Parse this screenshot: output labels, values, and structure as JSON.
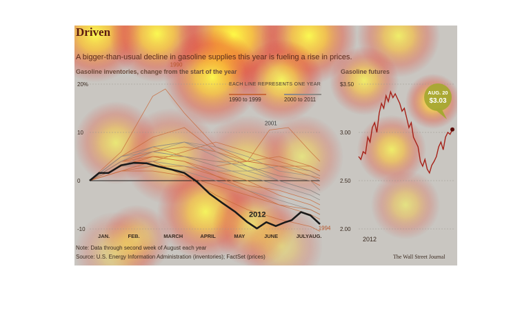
{
  "title": "Driven",
  "subtitle": "A bigger-than-usual decline in gasoline supplies this year is fueling a rise in prices.",
  "note": "Note: Data through second week of August each year",
  "source": "Source: U.S. Energy Information Administration (inventories); FactSet (prices)",
  "credit": "The Wall Street Journal",
  "colors": {
    "panel_bg": "#c9c6c1",
    "line_1990s": "#c8693a",
    "line_2000s": "#8f8a86",
    "line_2012": "#1a1a1a",
    "futures_line": "#a51f16",
    "callout": "#a6a832"
  },
  "chart_data": [
    {
      "type": "line",
      "title": "Gasoline inventories, change from the start of the year",
      "legend_header": "EACH LINE REPRESENTS ONE YEAR",
      "legend": [
        "1990 to 1999",
        "2000 to 2011"
      ],
      "categories": [
        "JAN.",
        "FEB.",
        "MARCH",
        "APRIL",
        "MAY",
        "JUNE",
        "JULY",
        "AUG."
      ],
      "y_ticks": [
        "20%",
        "10",
        "0",
        "-10"
      ],
      "ylim": [
        -10,
        20
      ],
      "annotations": [
        "1990",
        "2001",
        "1994",
        "2012"
      ],
      "series": [
        {
          "name": "2012",
          "x": [
            0,
            0.3,
            0.6,
            1,
            1.4,
            1.8,
            2.2,
            2.6,
            3,
            3.4,
            3.8,
            4.2,
            4.6,
            5,
            5.3,
            5.6,
            5.9,
            6.2,
            6.4,
            6.7,
            7,
            7.3
          ],
          "y": [
            0,
            1.6,
            1.6,
            3.2,
            3.7,
            3.6,
            2.9,
            2.3,
            1.6,
            -0.2,
            -2.7,
            -4.6,
            -6.4,
            -8.6,
            -9.9,
            -8.6,
            -9.4,
            -8.6,
            -8.2,
            -6.5,
            -7.2,
            -9
          ]
        },
        {
          "name": "1990",
          "x": [
            0,
            1,
            2,
            2.4,
            3,
            4,
            5,
            6,
            7,
            7.3
          ],
          "y": [
            0,
            6,
            17.5,
            19,
            14,
            7,
            4,
            3,
            1,
            0.5
          ]
        },
        {
          "name": "2001",
          "x": [
            0,
            1,
            2,
            3,
            4,
            5,
            5.7,
            6.3,
            7,
            7.3
          ],
          "y": [
            0,
            5,
            7,
            5,
            3,
            4,
            10.5,
            11,
            6,
            4
          ]
        },
        {
          "name": "1994",
          "x": [
            0,
            1,
            2,
            3,
            4,
            5,
            6,
            7,
            7.3
          ],
          "y": [
            0,
            4,
            4,
            1,
            -3,
            -6,
            -8,
            -9.5,
            -10.5
          ]
        },
        {
          "x": [
            0,
            1,
            2,
            3,
            4,
            5,
            6,
            7,
            7.3
          ],
          "y": [
            0,
            5,
            9,
            11,
            6,
            3,
            1,
            0,
            -1
          ]
        },
        {
          "x": [
            0,
            1,
            2,
            3,
            4,
            5,
            6,
            7,
            7.3
          ],
          "y": [
            0,
            3,
            6,
            8,
            5,
            2,
            0,
            -2,
            -3
          ]
        },
        {
          "x": [
            0,
            1,
            2,
            3,
            4,
            5,
            6,
            7,
            7.3
          ],
          "y": [
            0,
            4,
            5,
            4,
            2,
            0,
            -3,
            -5,
            -6
          ]
        },
        {
          "x": [
            0,
            1,
            2,
            3,
            4,
            5,
            6,
            7,
            7.3
          ],
          "y": [
            0,
            3,
            3,
            2,
            0,
            -2,
            -4,
            -6,
            -7
          ]
        },
        {
          "x": [
            0,
            1,
            2,
            3,
            4,
            5,
            6,
            7,
            7.3
          ],
          "y": [
            0,
            2,
            4,
            6,
            8,
            6,
            4,
            2,
            1
          ]
        },
        {
          "x": [
            0,
            1,
            2,
            3,
            4,
            5,
            6,
            7,
            7.3
          ],
          "y": [
            0,
            5,
            7,
            8,
            7,
            5,
            2,
            1,
            0
          ]
        },
        {
          "x": [
            0,
            1,
            2,
            3,
            4,
            5,
            6,
            7,
            7.3
          ],
          "y": [
            0,
            3,
            5,
            5,
            4,
            4,
            5,
            3,
            2
          ]
        },
        {
          "x": [
            0,
            1,
            2,
            3,
            4,
            5,
            6,
            7,
            7.3
          ],
          "y": [
            0,
            4,
            6,
            5,
            3,
            1,
            -1,
            -3,
            -4
          ]
        },
        {
          "x": [
            0,
            1,
            2,
            3,
            4,
            5,
            6,
            7,
            7.3
          ],
          "y": [
            0,
            2,
            3,
            3,
            1,
            -1,
            -2,
            -4,
            -5
          ]
        },
        {
          "x": [
            0,
            1,
            2,
            3,
            4,
            5,
            6,
            7,
            7.3
          ],
          "y": [
            0,
            3,
            4,
            3,
            2,
            2,
            3,
            2,
            1
          ]
        },
        {
          "x": [
            0,
            1,
            2,
            3,
            4,
            5,
            6,
            7,
            7.3
          ],
          "y": [
            0,
            4,
            6,
            7,
            6,
            4,
            3,
            3,
            2
          ]
        },
        {
          "x": [
            0,
            1,
            2,
            3,
            4,
            5,
            6,
            7,
            7.3
          ],
          "y": [
            0,
            5,
            6,
            5,
            4,
            3,
            1,
            0,
            -2
          ]
        },
        {
          "x": [
            0,
            1,
            2,
            3,
            4,
            5,
            6,
            7,
            7.3
          ],
          "y": [
            0,
            3,
            5,
            4,
            1,
            -2,
            -5,
            -7,
            -8
          ]
        },
        {
          "x": [
            0,
            1,
            2,
            3,
            4,
            5,
            6,
            7,
            7.3
          ],
          "y": [
            0,
            4,
            7,
            8,
            6,
            3,
            0,
            -2,
            -3
          ]
        },
        {
          "x": [
            0,
            1,
            2,
            3,
            4,
            5,
            6,
            7,
            7.3
          ],
          "y": [
            0,
            2,
            2,
            1,
            -1,
            -3,
            -5,
            -6,
            -7
          ]
        }
      ]
    },
    {
      "type": "line",
      "title": "Gasoline futures",
      "y_ticks": [
        "$3.50",
        "3.00",
        "2.50",
        "2.00"
      ],
      "ylim": [
        2.0,
        3.5
      ],
      "xlabel": "2012",
      "callout": {
        "date": "AUG. 20",
        "value": "$3.03"
      },
      "series": [
        {
          "name": "futures",
          "values": [
            2.75,
            2.72,
            2.8,
            2.78,
            2.95,
            2.9,
            3.05,
            3.1,
            3.0,
            3.2,
            3.3,
            3.25,
            3.38,
            3.32,
            3.42,
            3.36,
            3.4,
            3.35,
            3.3,
            3.22,
            3.25,
            3.15,
            3.05,
            3.1,
            2.95,
            2.9,
            2.85,
            2.7,
            2.65,
            2.72,
            2.62,
            2.58,
            2.66,
            2.7,
            2.75,
            2.85,
            2.9,
            2.82,
            2.95,
            3.0,
            2.98,
            3.03
          ]
        }
      ]
    }
  ]
}
